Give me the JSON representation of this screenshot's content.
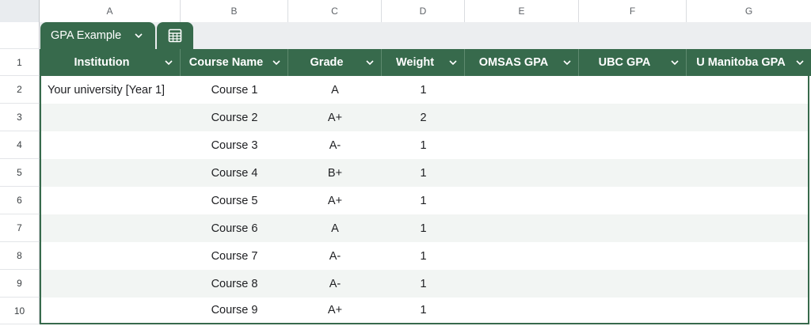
{
  "columns": [
    "A",
    "B",
    "C",
    "D",
    "E",
    "F",
    "G"
  ],
  "rows": [
    "1",
    "2",
    "3",
    "4",
    "5",
    "6",
    "7",
    "8",
    "9",
    "10"
  ],
  "table": {
    "name": "GPA Example",
    "icon": "table-view-icon",
    "header_color": "#376a4c",
    "headers": [
      "Institution",
      "Course Name",
      "Grade",
      "Weight",
      "OMSAS GPA",
      "UBC GPA",
      "U Manitoba GPA"
    ],
    "data": [
      {
        "institution": "Your university [Year 1]",
        "course": "Course 1",
        "grade": "A",
        "weight": "1"
      },
      {
        "institution": "",
        "course": "Course 2",
        "grade": "A+",
        "weight": "2"
      },
      {
        "institution": "",
        "course": "Course 3",
        "grade": "A-",
        "weight": "1"
      },
      {
        "institution": "",
        "course": "Course 4",
        "grade": "B+",
        "weight": "1"
      },
      {
        "institution": "",
        "course": "Course 5",
        "grade": "A+",
        "weight": "1"
      },
      {
        "institution": "",
        "course": "Course 6",
        "grade": "A",
        "weight": "1"
      },
      {
        "institution": "",
        "course": "Course 7",
        "grade": "A-",
        "weight": "1"
      },
      {
        "institution": "",
        "course": "Course 8",
        "grade": "A-",
        "weight": "1"
      },
      {
        "institution": "",
        "course": "Course 9",
        "grade": "A+",
        "weight": "1"
      }
    ]
  }
}
